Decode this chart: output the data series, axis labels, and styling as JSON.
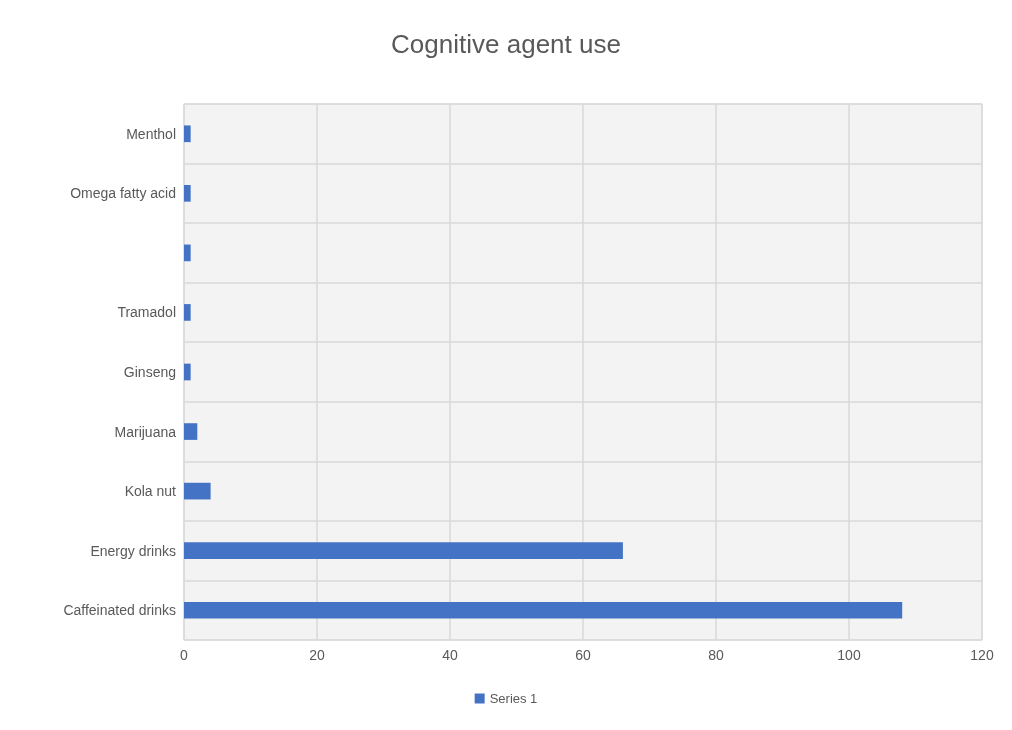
{
  "chart_data": {
    "type": "bar",
    "orientation": "horizontal",
    "title": "Cognitive agent use",
    "categories": [
      "Menthol",
      "Omega fatty acid",
      null,
      "Tramadol",
      "Ginseng",
      "Marijuana",
      "Kola nut",
      "Energy drinks",
      "Caffeinated drinks"
    ],
    "series": [
      {
        "name": "Series 1",
        "color": "#4472c4",
        "values": [
          1,
          1,
          1,
          1,
          1,
          2,
          4,
          66,
          108
        ]
      }
    ],
    "xlim": [
      0,
      120
    ],
    "xticks": [
      0,
      20,
      40,
      60,
      80,
      100,
      120
    ],
    "grid": true,
    "legend": "bottom"
  }
}
